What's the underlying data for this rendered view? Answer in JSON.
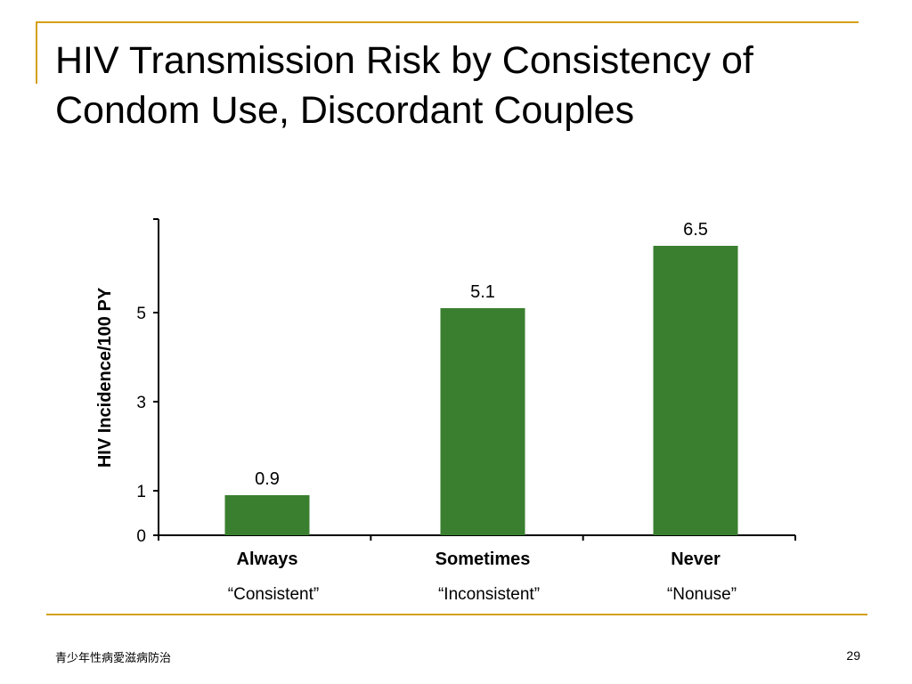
{
  "slide": {
    "title_line1": "HIV Transmission Risk by Consistency of",
    "title_line2": "Condom Use, Discordant Couples",
    "footer": "青少年性病愛滋病防治",
    "page_number": "29",
    "accent_color": "#D4A017"
  },
  "chart_data": {
    "type": "bar",
    "categories": [
      "Always",
      "Sometimes",
      "Never"
    ],
    "subcategories": [
      "“Consistent”",
      "“Inconsistent”",
      "“Nonuse”"
    ],
    "values": [
      0.9,
      5.1,
      6.5
    ],
    "data_labels": [
      "0.9",
      "5.1",
      "6.5"
    ],
    "ylabel": "HIV Incidence/100 PY",
    "yticks": [
      0,
      1,
      3,
      5
    ],
    "ylim": [
      0,
      7
    ],
    "bar_color": "#3A7F2F",
    "grid": false
  }
}
